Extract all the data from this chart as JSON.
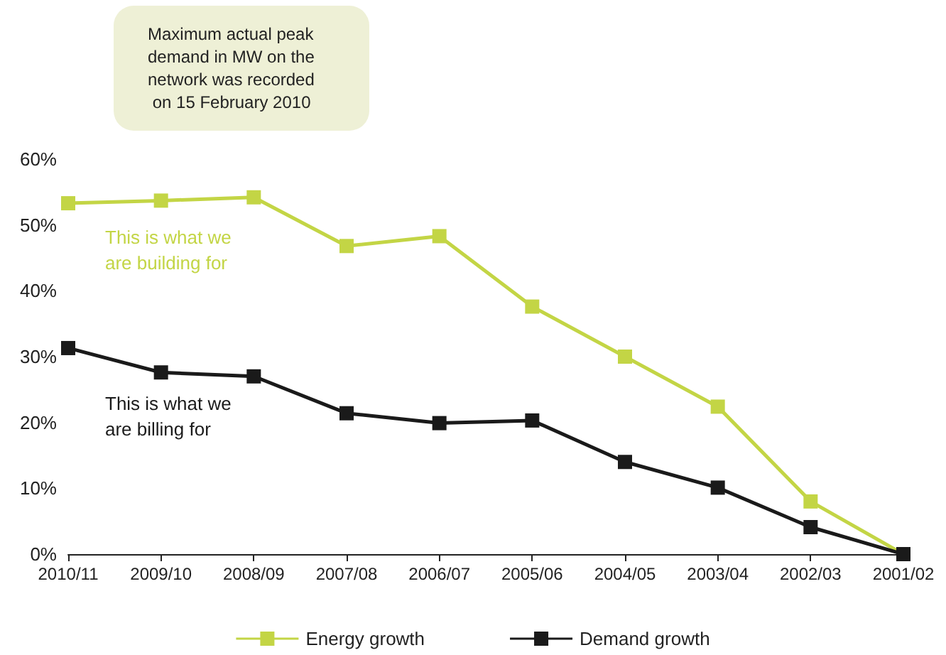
{
  "chart_data": {
    "type": "line",
    "categories": [
      "2010/11",
      "2009/10",
      "2008/09",
      "2007/08",
      "2006/07",
      "2005/06",
      "2004/05",
      "2003/04",
      "2002/03",
      "2001/02"
    ],
    "series": [
      {
        "name": "Energy growth",
        "color": "#c3d545",
        "values": [
          53.3,
          53.7,
          54.2,
          46.8,
          48.3,
          37.6,
          30.0,
          22.4,
          8.0,
          0
        ]
      },
      {
        "name": "Demand growth",
        "color": "#1a1a1a",
        "values": [
          31.3,
          27.6,
          27.0,
          21.4,
          19.9,
          20.3,
          14.0,
          10.1,
          4.1,
          0
        ]
      }
    ],
    "ylim": [
      0,
      60
    ],
    "yticks": [
      {
        "value": 0,
        "label": "0%"
      },
      {
        "value": 10,
        "label": "10%"
      },
      {
        "value": 20,
        "label": "20%"
      },
      {
        "value": 30,
        "label": "30%"
      },
      {
        "value": 40,
        "label": "40%"
      },
      {
        "value": 50,
        "label": "50%"
      },
      {
        "value": 60,
        "label": "60%"
      }
    ],
    "annotations": [
      "Maximum actual peak demand in MW on the network was recorded on 15 February 2010",
      "This is what we are building for",
      "This is what we are billing for"
    ],
    "grid": false,
    "legend": "bottom",
    "marker": "square",
    "line_style": "solid"
  }
}
